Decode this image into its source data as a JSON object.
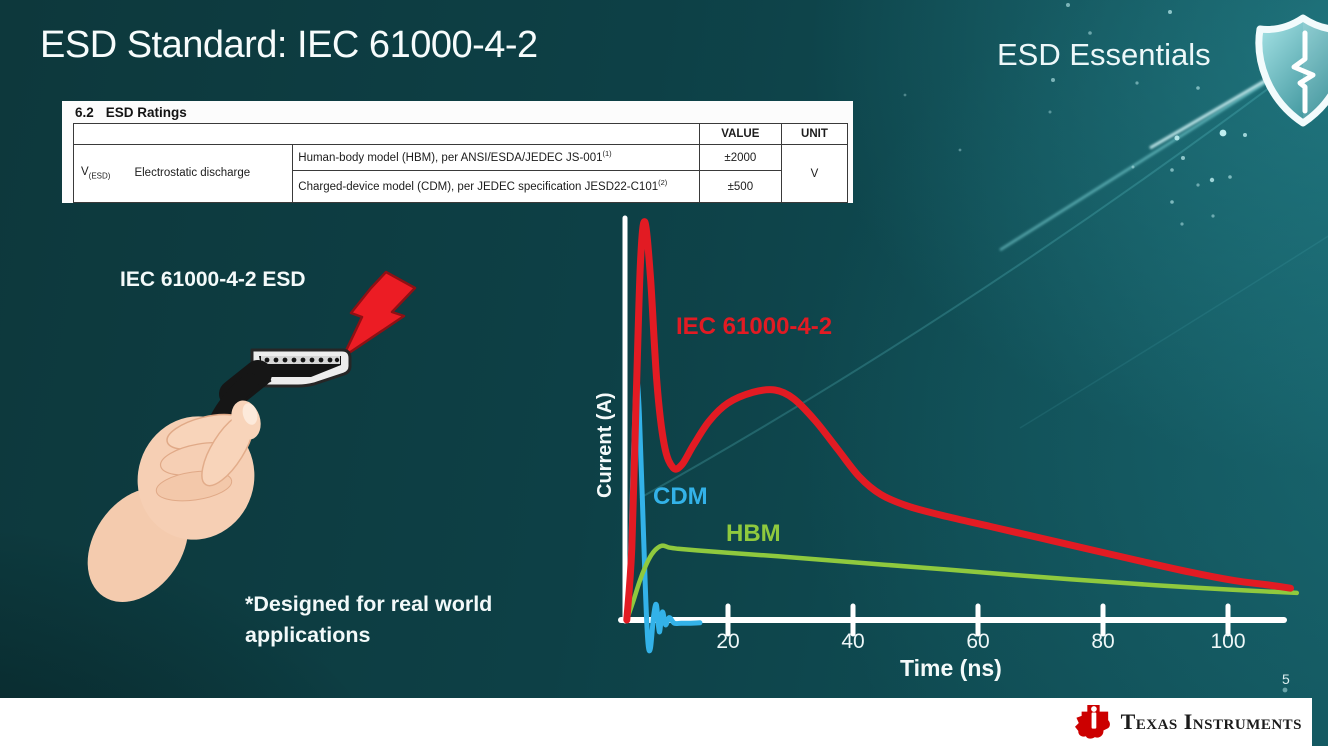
{
  "slide": {
    "title": "ESD Standard: IEC 61000-4-2",
    "series_label": "ESD Essentials",
    "page_number": "5",
    "footer_brand": "Texas Instruments",
    "brand_red": "#cc0000",
    "background_teal": "#0d4046",
    "star_color": "#bfeef0"
  },
  "ratings_table": {
    "heading_num": "6.2",
    "heading_text": "ESD Ratings",
    "col_value": "VALUE",
    "col_unit": "UNIT",
    "param_symbol": "V",
    "param_symbol_sub": "(ESD)",
    "param_name": "Electrostatic discharge",
    "rows": [
      {
        "desc": "Human-body model (HBM), per ANSI/ESDA/JEDEC JS-001",
        "desc_sup": "(1)",
        "value": "±2000"
      },
      {
        "desc": "Charged-device model (CDM), per JEDEC specification JESD22-C101",
        "desc_sup": "(2)",
        "value": "±500"
      }
    ],
    "unit": "V"
  },
  "illustration": {
    "label": "IEC 61000-4-2 ESD",
    "note_line1": "*Designed for real world",
    "note_line2": "applications"
  },
  "chart_data": {
    "type": "line",
    "title": "",
    "xlabel": "Time (ns)",
    "ylabel": "Current (A)",
    "x_ticks": [
      20,
      40,
      60,
      80,
      100
    ],
    "x_range": [
      0,
      112
    ],
    "y_range_normalized": [
      -0.08,
      1.0
    ],
    "grid": false,
    "legend_position": "inline-labels",
    "series": [
      {
        "name": "IEC 61000-4-2",
        "color": "#e21b23",
        "points": [
          [
            3.8,
            0
          ],
          [
            4.6,
            0.18
          ],
          [
            5.3,
            0.55
          ],
          [
            6.0,
            0.9
          ],
          [
            6.7,
            1.0
          ],
          [
            7.6,
            0.86
          ],
          [
            8.6,
            0.6
          ],
          [
            9.8,
            0.44
          ],
          [
            11.2,
            0.383
          ],
          [
            12.6,
            0.39
          ],
          [
            14.5,
            0.44
          ],
          [
            17,
            0.5
          ],
          [
            20,
            0.545
          ],
          [
            24,
            0.572
          ],
          [
            27.5,
            0.578
          ],
          [
            30.5,
            0.556
          ],
          [
            34,
            0.5
          ],
          [
            37.5,
            0.43
          ],
          [
            41,
            0.36
          ],
          [
            44.5,
            0.315
          ],
          [
            49,
            0.285
          ],
          [
            55,
            0.26
          ],
          [
            62,
            0.235
          ],
          [
            70,
            0.206
          ],
          [
            78,
            0.177
          ],
          [
            86,
            0.148
          ],
          [
            94,
            0.12
          ],
          [
            101,
            0.099
          ],
          [
            106,
            0.089
          ],
          [
            110,
            0.08
          ]
        ]
      },
      {
        "name": "CDM",
        "color": "#33b2e8",
        "points": [
          [
            3.8,
            0
          ],
          [
            4.3,
            0.12
          ],
          [
            4.8,
            0.38
          ],
          [
            5.2,
            0.565
          ],
          [
            5.45,
            0.603
          ],
          [
            5.8,
            0.52
          ],
          [
            6.3,
            0.3
          ],
          [
            6.8,
            0.07
          ],
          [
            7.2,
            -0.058
          ],
          [
            7.6,
            -0.07
          ],
          [
            8.1,
            0.01
          ],
          [
            8.55,
            0.038
          ],
          [
            9.0,
            -0.03
          ],
          [
            9.5,
            0.02
          ],
          [
            10.0,
            -0.012
          ],
          [
            10.6,
            0.006
          ],
          [
            11.4,
            -0.008
          ],
          [
            12.5,
            -0.008
          ],
          [
            14,
            -0.008
          ],
          [
            15.5,
            -0.007
          ]
        ]
      },
      {
        "name": "HBM",
        "color": "#8fc93e",
        "points": [
          [
            3.8,
            0
          ],
          [
            4.8,
            0.045
          ],
          [
            5.8,
            0.095
          ],
          [
            6.8,
            0.135
          ],
          [
            7.8,
            0.165
          ],
          [
            8.8,
            0.182
          ],
          [
            9.6,
            0.187
          ],
          [
            10.6,
            0.182
          ],
          [
            12,
            0.179
          ],
          [
            15,
            0.175
          ],
          [
            20,
            0.169
          ],
          [
            28,
            0.16
          ],
          [
            36,
            0.15
          ],
          [
            45,
            0.139
          ],
          [
            55,
            0.127
          ],
          [
            65,
            0.114
          ],
          [
            75,
            0.102
          ],
          [
            85,
            0.091
          ],
          [
            95,
            0.081
          ],
          [
            103,
            0.074
          ],
          [
            111,
            0.068
          ]
        ]
      }
    ]
  }
}
